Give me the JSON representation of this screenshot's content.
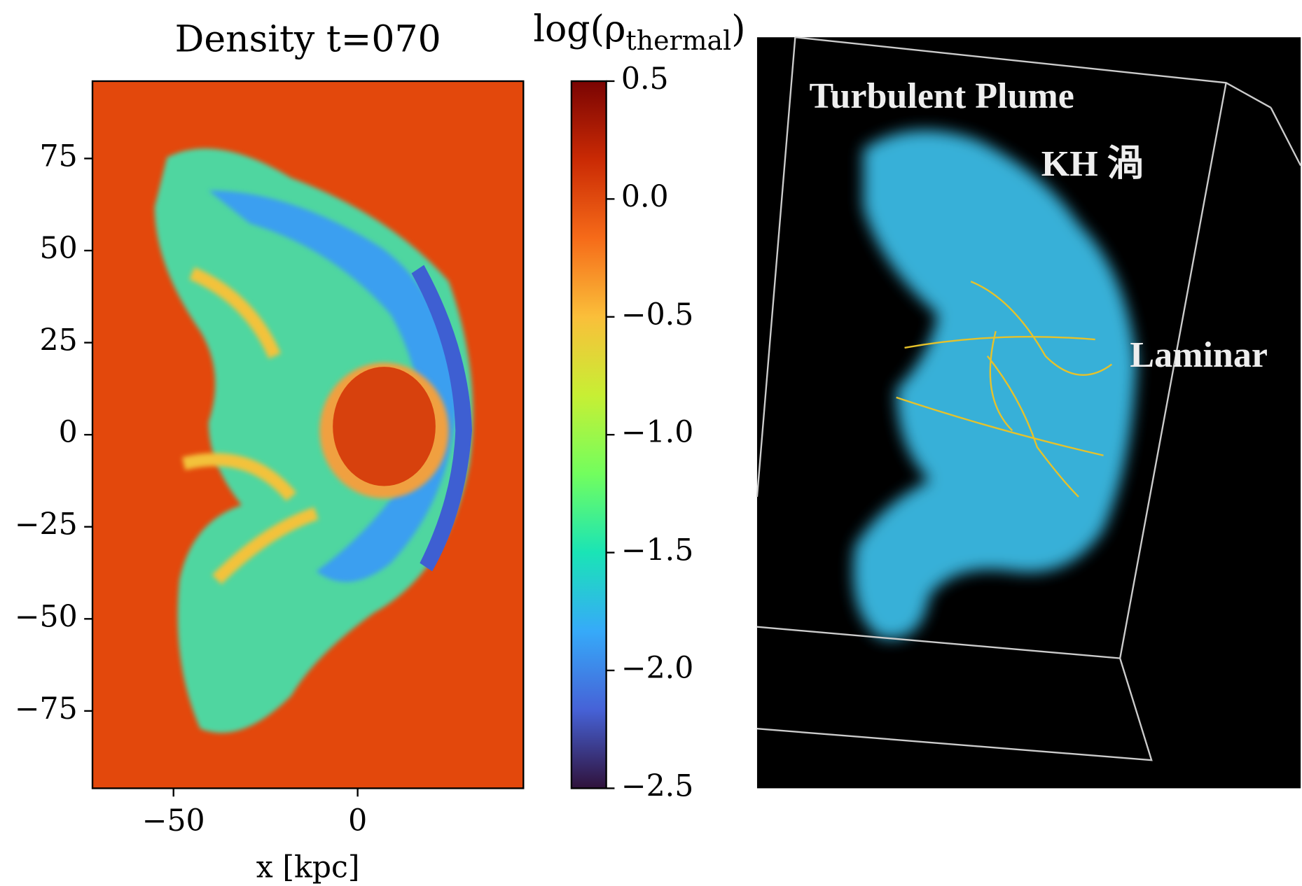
{
  "chart_data": {
    "type": "heatmap",
    "title": "Density t=070",
    "xlabel": "x [kpc]",
    "xlim": [
      -72,
      45
    ],
    "ylim": [
      -96,
      96
    ],
    "xticks": [
      {
        "value": -50,
        "label": "−50"
      },
      0
    ],
    "yticks": [
      {
        "value": 75,
        "label": "75"
      },
      {
        "value": 50,
        "label": "50"
      },
      25,
      0,
      {
        "value": -25,
        "label": "−25"
      },
      {
        "value": -50,
        "label": "−50"
      },
      {
        "value": -75,
        "label": "−75"
      }
    ],
    "colorbar": {
      "label": [
        "log(ρ",
        "thermal",
        ")"
      ],
      "lim": [
        -2.5,
        0.5
      ],
      "ticks": [
        0.5,
        {
          "value": 0,
          "label": "0.0"
        },
        {
          "value": -0.5,
          "label": "−0.5"
        },
        {
          "value": -1,
          "label": "−1.0"
        },
        {
          "value": -1.5,
          "label": "−1.5"
        },
        {
          "value": -2,
          "label": "−2.0"
        },
        {
          "value": -2.5,
          "label": "−2.5"
        }
      ],
      "colors": [
        "#30123b",
        "#4662d7",
        "#36aaf9",
        "#1ae4b6",
        "#72fe5e",
        "#c7ef34",
        "#fabf3a",
        "#f66b19",
        "#ca2a04",
        "#7a0403"
      ]
    }
  },
  "render": {
    "annotations": [
      "Turbulent Plume",
      "KH 渦",
      "Laminar"
    ]
  }
}
